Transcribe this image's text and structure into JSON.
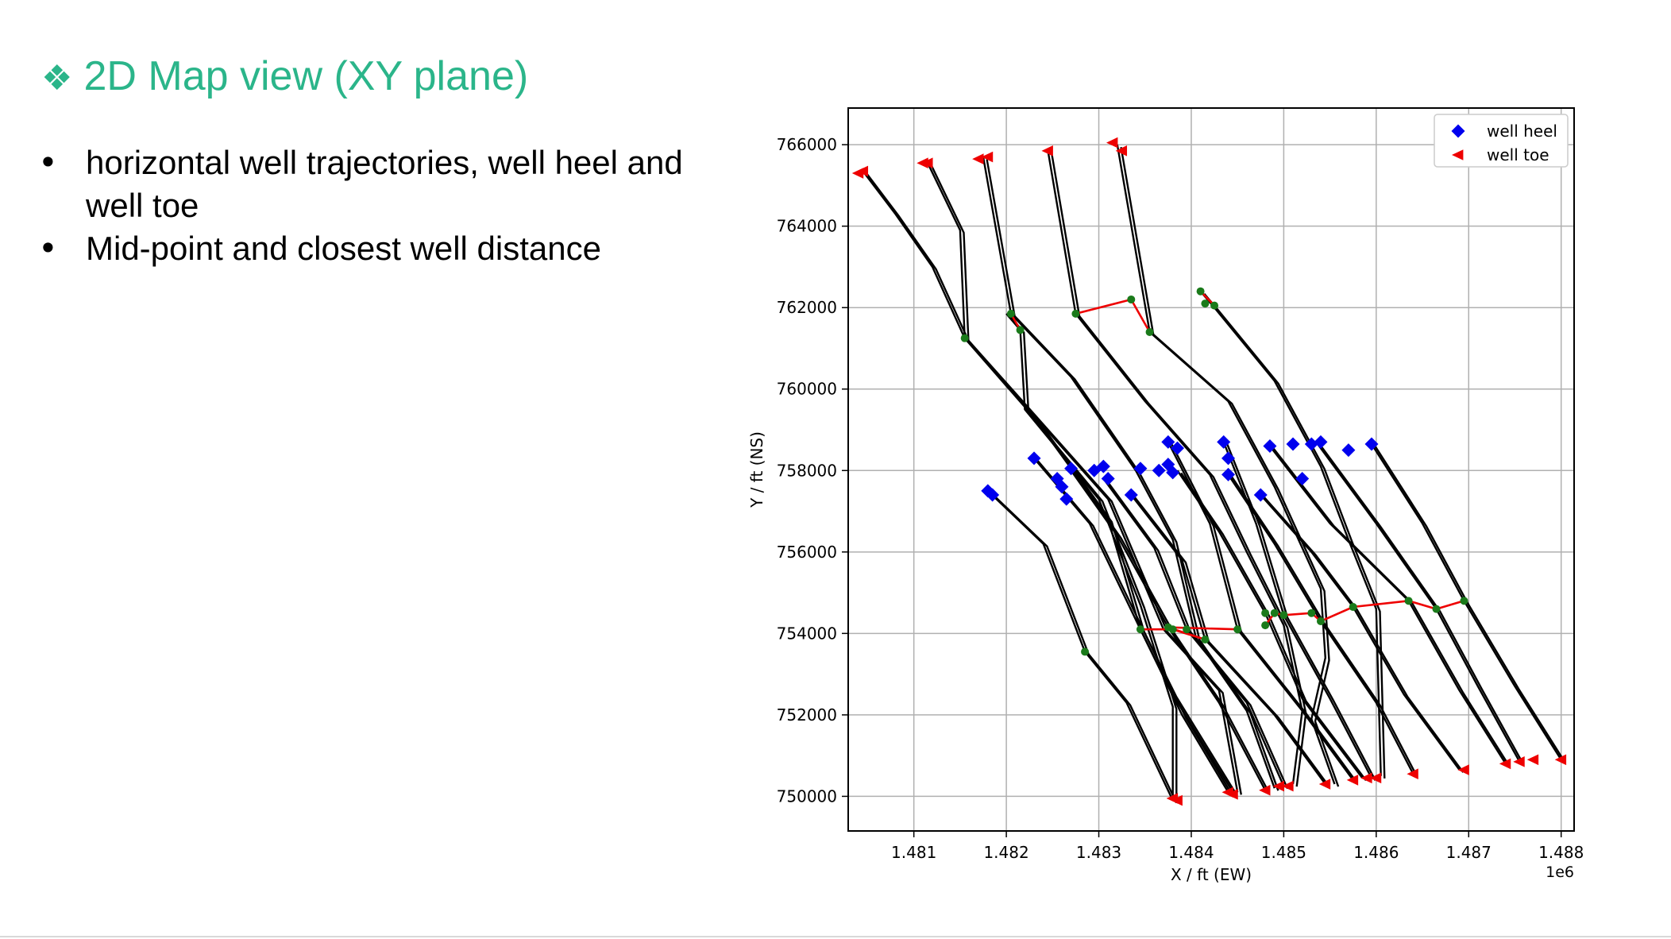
{
  "slide": {
    "title": "2D Map view (XY plane)",
    "bullets": [
      "horizontal well trajectories, well heel and well toe",
      "Mid-point and closest well distance"
    ]
  },
  "icons": {
    "title_bullet": "diamond-pattern-bullet-icon"
  },
  "colors": {
    "title": "#2bb58a",
    "heel": "#0000ee",
    "toe": "#ee0000",
    "trajectory": "#000000",
    "midpoint": "#1a7a1a",
    "closest_link": "#ee0000"
  },
  "chart_data": {
    "type": "scatter",
    "xlabel": "X / ft (EW)",
    "ylabel": "Y / ft (NS)",
    "x_offset_label": "1e6",
    "xlim": [
      1.48029,
      1.48814
    ],
    "ylim": [
      749150,
      766900
    ],
    "xticks": [
      1.481,
      1.482,
      1.483,
      1.484,
      1.485,
      1.486,
      1.487,
      1.488
    ],
    "xtick_labels": [
      "1.481",
      "1.482",
      "1.483",
      "1.484",
      "1.485",
      "1.486",
      "1.487",
      "1.488"
    ],
    "yticks": [
      750000,
      752000,
      754000,
      756000,
      758000,
      760000,
      762000,
      764000,
      766000
    ],
    "ytick_labels": [
      "750000",
      "752000",
      "754000",
      "756000",
      "758000",
      "760000",
      "762000",
      "764000",
      "766000"
    ],
    "grid": true,
    "legend": {
      "position": "top-right",
      "entries": [
        {
          "label": "well heel",
          "marker": "diamond"
        },
        {
          "label": "well toe",
          "marker": "triangle-left"
        }
      ]
    },
    "wells": [
      {
        "heel": [
          1.48045,
          765350
        ],
        "toe": [
          1.48045,
          765350
        ],
        "mid": [
          1.48155,
          761250
        ],
        "path": [
          [
            1.48045,
            765350
          ],
          [
            1.4808,
            764300
          ],
          [
            1.4812,
            763000
          ],
          [
            1.48155,
            761250
          ],
          [
            1.4822,
            759600
          ],
          [
            1.4831,
            757300
          ],
          [
            1.4837,
            754100
          ],
          [
            1.4843,
            752600
          ],
          [
            1.4845,
            750100
          ]
        ]
      },
      {
        "heel": [
          1.48115,
          765550
        ],
        "toe": [
          1.48115,
          765550
        ],
        "mid": [
          1.48155,
          761250
        ],
        "path": [
          [
            1.48115,
            765550
          ],
          [
            1.4815,
            763900
          ],
          [
            1.48155,
            761250
          ],
          [
            1.4823,
            759300
          ],
          [
            1.4831,
            756800
          ],
          [
            1.48345,
            754100
          ],
          [
            1.4839,
            752000
          ],
          [
            1.4844,
            750100
          ]
        ]
      },
      {
        "heel": [
          1.48175,
          765700
        ],
        "toe": [
          1.48175,
          765700
        ],
        "mid": [
          1.48205,
          761850
        ],
        "path": [
          [
            1.48175,
            765700
          ],
          [
            1.48205,
            761850
          ],
          [
            1.4827,
            760300
          ],
          [
            1.4834,
            758000
          ],
          [
            1.4838,
            756300
          ],
          [
            1.48405,
            753900
          ],
          [
            1.4846,
            752100
          ],
          [
            1.4849,
            750200
          ]
        ]
      },
      {
        "heel": [
          1.48245,
          765850
        ],
        "toe": [
          1.48245,
          765850
        ],
        "mid": [
          1.48275,
          761850
        ],
        "path": [
          [
            1.48245,
            765850
          ],
          [
            1.48275,
            761850
          ],
          [
            1.4835,
            759700
          ],
          [
            1.4842,
            757900
          ],
          [
            1.4846,
            756000
          ],
          [
            1.485,
            754200
          ],
          [
            1.4852,
            752100
          ],
          [
            1.4851,
            750300
          ]
        ]
      },
      {
        "heel": [
          1.4832,
          766000
        ],
        "toe": [
          1.4832,
          766000
        ],
        "mid": [
          1.48355,
          761400
        ],
        "path": [
          [
            1.4832,
            766000
          ],
          [
            1.48355,
            761400
          ],
          [
            1.4844,
            759700
          ],
          [
            1.4849,
            757600
          ],
          [
            1.4854,
            755100
          ],
          [
            1.48545,
            753400
          ],
          [
            1.4853,
            751900
          ],
          [
            1.48555,
            750300
          ]
        ]
      },
      {
        "heel": [
          1.4841,
          762400
        ],
        "toe": [
          1.4841,
          762400
        ],
        "mid": [
          1.48415,
          762100
        ],
        "path": [
          [
            1.4841,
            762400
          ],
          [
            1.48425,
            762000
          ],
          [
            1.4849,
            760200
          ],
          [
            1.4854,
            758100
          ],
          [
            1.4857,
            756300
          ],
          [
            1.486,
            754600
          ],
          [
            1.48605,
            750500
          ]
        ]
      },
      {
        "heel": [
          1.482,
          761850
        ],
        "toe": [
          1.482,
          761850
        ],
        "mid": [
          1.48215,
          761450
        ],
        "path": [
          [
            1.482,
            761850
          ],
          [
            1.48215,
            761450
          ],
          [
            1.4822,
            759500
          ],
          [
            1.483,
            757300
          ],
          [
            1.48345,
            754700
          ],
          [
            1.4838,
            752200
          ],
          [
            1.4838,
            749950
          ]
        ]
      },
      {
        "heel": [
          1.4818,
          757500
        ],
        "toe": [
          1.4838,
          749900
        ],
        "mid": [
          1.48285,
          753550
        ],
        "path": [
          [
            1.4818,
            757500
          ],
          [
            1.4824,
            756200
          ],
          [
            1.48285,
            753550
          ],
          [
            1.4833,
            752300
          ],
          [
            1.4838,
            749900
          ]
        ]
      },
      {
        "heel": [
          1.4823,
          758300
        ],
        "toe": [
          1.48445,
          750100
        ],
        "mid": [
          1.48345,
          754100
        ],
        "path": [
          [
            1.4823,
            758300
          ],
          [
            1.4829,
            756700
          ],
          [
            1.48345,
            754100
          ],
          [
            1.4838,
            752500
          ],
          [
            1.48445,
            750100
          ]
        ]
      },
      {
        "heel": [
          1.4827,
          758000
        ],
        "toe": [
          1.4848,
          750150
        ],
        "mid": [
          1.48375,
          754150
        ],
        "path": [
          [
            1.4827,
            758000
          ],
          [
            1.4832,
            756400
          ],
          [
            1.48375,
            754150
          ],
          [
            1.4843,
            752300
          ],
          [
            1.4848,
            750150
          ]
        ]
      },
      {
        "heel": [
          1.48305,
          757800
        ],
        "toe": [
          1.485,
          750250
        ],
        "mid": [
          1.48395,
          754100
        ],
        "path": [
          [
            1.48305,
            757800
          ],
          [
            1.4836,
            756100
          ],
          [
            1.48395,
            754100
          ],
          [
            1.4846,
            752300
          ],
          [
            1.485,
            750250
          ]
        ]
      },
      {
        "heel": [
          1.48335,
          757400
        ],
        "toe": [
          1.48545,
          750300
        ],
        "mid": [
          1.48415,
          753850
        ],
        "path": [
          [
            1.48335,
            757400
          ],
          [
            1.4839,
            755800
          ],
          [
            1.48415,
            753850
          ],
          [
            1.4849,
            752000
          ],
          [
            1.48545,
            750300
          ]
        ]
      },
      {
        "heel": [
          1.48375,
          758700
        ],
        "toe": [
          1.48575,
          750400
        ],
        "mid": [
          1.4845,
          754100
        ],
        "path": [
          [
            1.48375,
            758700
          ],
          [
            1.4842,
            756700
          ],
          [
            1.4845,
            754100
          ],
          [
            1.4852,
            752100
          ],
          [
            1.48575,
            750400
          ]
        ]
      },
      {
        "heel": [
          1.48385,
          758000
        ],
        "toe": [
          1.48585,
          750450
        ],
        "mid": [
          1.4848,
          754500
        ],
        "path": [
          [
            1.48385,
            758000
          ],
          [
            1.4843,
            756500
          ],
          [
            1.4848,
            754500
          ],
          [
            1.4852,
            752400
          ],
          [
            1.48585,
            750450
          ]
        ]
      },
      {
        "heel": [
          1.48435,
          758700
        ],
        "toe": [
          1.48595,
          750450
        ],
        "mid": [
          1.485,
          754450
        ],
        "path": [
          [
            1.48435,
            758700
          ],
          [
            1.4847,
            756700
          ],
          [
            1.485,
            754450
          ],
          [
            1.4855,
            752400
          ],
          [
            1.48595,
            750450
          ]
        ]
      },
      {
        "heel": [
          1.4844,
          757900
        ],
        "toe": [
          1.4864,
          750550
        ],
        "mid": [
          1.4854,
          754300
        ],
        "path": [
          [
            1.4844,
            757900
          ],
          [
            1.4849,
            756200
          ],
          [
            1.4854,
            754300
          ],
          [
            1.486,
            752300
          ],
          [
            1.4864,
            750550
          ]
        ]
      },
      {
        "heel": [
          1.48475,
          757400
        ],
        "toe": [
          1.4869,
          750650
        ],
        "mid": [
          1.48575,
          754650
        ],
        "path": [
          [
            1.48475,
            757400
          ],
          [
            1.4853,
            756000
          ],
          [
            1.48575,
            754650
          ],
          [
            1.4863,
            752500
          ],
          [
            1.4869,
            750650
          ]
        ]
      },
      {
        "heel": [
          1.48485,
          758600
        ],
        "toe": [
          1.4874,
          750800
        ],
        "mid": [
          1.48635,
          754800
        ],
        "path": [
          [
            1.48485,
            758600
          ],
          [
            1.4855,
            756700
          ],
          [
            1.48635,
            754800
          ],
          [
            1.4869,
            752600
          ],
          [
            1.4874,
            750800
          ]
        ]
      },
      {
        "heel": [
          1.48535,
          758700
        ],
        "toe": [
          1.48755,
          750850
        ],
        "mid": [
          1.48665,
          754600
        ],
        "path": [
          [
            1.48535,
            758700
          ],
          [
            1.486,
            756700
          ],
          [
            1.48665,
            754600
          ],
          [
            1.4871,
            752700
          ],
          [
            1.48755,
            750850
          ]
        ]
      },
      {
        "heel": [
          1.48595,
          758650
        ],
        "toe": [
          1.488,
          750900
        ],
        "mid": [
          1.48695,
          754800
        ],
        "path": [
          [
            1.48595,
            758650
          ],
          [
            1.4865,
            756700
          ],
          [
            1.48695,
            754800
          ],
          [
            1.4875,
            752700
          ],
          [
            1.488,
            750900
          ]
        ]
      }
    ],
    "heel_points": [
      [
        1.4818,
        757500
      ],
      [
        1.48185,
        757400
      ],
      [
        1.4823,
        758300
      ],
      [
        1.48255,
        757800
      ],
      [
        1.4826,
        757600
      ],
      [
        1.48265,
        757300
      ],
      [
        1.4827,
        758050
      ],
      [
        1.48295,
        758000
      ],
      [
        1.48305,
        758100
      ],
      [
        1.4831,
        757800
      ],
      [
        1.48335,
        757400
      ],
      [
        1.48345,
        758050
      ],
      [
        1.48365,
        758000
      ],
      [
        1.48375,
        758700
      ],
      [
        1.48375,
        758150
      ],
      [
        1.4838,
        757950
      ],
      [
        1.48385,
        758550
      ],
      [
        1.48435,
        758700
      ],
      [
        1.4844,
        758300
      ],
      [
        1.4844,
        757900
      ],
      [
        1.48475,
        757400
      ],
      [
        1.48485,
        758600
      ],
      [
        1.4851,
        758650
      ],
      [
        1.4852,
        757800
      ],
      [
        1.4853,
        758650
      ],
      [
        1.4854,
        758700
      ],
      [
        1.4857,
        758500
      ],
      [
        1.48595,
        758650
      ]
    ],
    "toe_points": [
      [
        1.48045,
        765350
      ],
      [
        1.4804,
        765300
      ],
      [
        1.4811,
        765550
      ],
      [
        1.48115,
        765550
      ],
      [
        1.4817,
        765650
      ],
      [
        1.4818,
        765700
      ],
      [
        1.48245,
        765850
      ],
      [
        1.48315,
        766050
      ],
      [
        1.48325,
        765850
      ],
      [
        1.4838,
        749950
      ],
      [
        1.48385,
        749900
      ],
      [
        1.4844,
        750100
      ],
      [
        1.48445,
        750050
      ],
      [
        1.4848,
        750150
      ],
      [
        1.48495,
        750250
      ],
      [
        1.48505,
        750250
      ],
      [
        1.48545,
        750300
      ],
      [
        1.48575,
        750400
      ],
      [
        1.4859,
        750450
      ],
      [
        1.486,
        750450
      ],
      [
        1.4864,
        750550
      ],
      [
        1.48695,
        750650
      ],
      [
        1.4874,
        750800
      ],
      [
        1.48755,
        750850
      ],
      [
        1.4877,
        750900
      ],
      [
        1.488,
        750900
      ]
    ],
    "closest_links": [
      [
        [
          1.48205,
          761850
        ],
        [
          1.48215,
          761450
        ]
      ],
      [
        [
          1.48275,
          761850
        ],
        [
          1.48335,
          762200
        ],
        [
          1.48355,
          761400
        ]
      ],
      [
        [
          1.4841,
          762400
        ],
        [
          1.48425,
          762050
        ]
      ],
      [
        [
          1.48345,
          754100
        ],
        [
          1.4838,
          754100
        ],
        [
          1.48415,
          753850
        ],
        [
          1.48375,
          754150
        ],
        [
          1.4845,
          754100
        ]
      ],
      [
        [
          1.4848,
          754200
        ],
        [
          1.4849,
          754500
        ],
        [
          1.485,
          754450
        ],
        [
          1.4853,
          754500
        ],
        [
          1.4854,
          754300
        ],
        [
          1.48575,
          754650
        ],
        [
          1.48635,
          754800
        ],
        [
          1.48665,
          754600
        ],
        [
          1.48695,
          754800
        ]
      ]
    ]
  }
}
